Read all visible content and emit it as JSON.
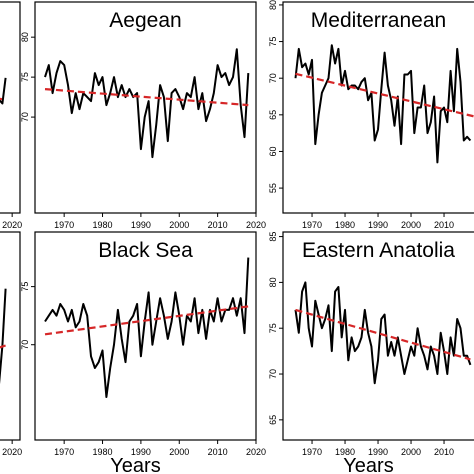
{
  "chart_data": [
    {
      "type": "line",
      "xlim": [
        1961.2,
        2022.4
      ],
      "ylim": [
        56.5,
        85.4
      ],
      "xticks": [
        2020
      ],
      "series": [
        {
          "color": "#000000",
          "x": [
            2015,
            2016,
            2017,
            2018
          ],
          "values": [
            71,
            72,
            71.5,
            75
          ]
        },
        {
          "color": "#d62728",
          "dashed": true,
          "x": [
            1965,
            2018
          ],
          "values": [
            76,
            72
          ]
        }
      ]
    },
    {
      "type": "line",
      "title": "Aegean",
      "xlim": [
        1962.4,
        2020
      ],
      "ylim": [
        58,
        84.4
      ],
      "xticks": [
        1970,
        1980,
        1990,
        2000,
        2010,
        2020
      ],
      "yticks": [
        70,
        75,
        80
      ],
      "series": [
        {
          "color": "#000000",
          "x": [
            1965,
            1966,
            1967,
            1968,
            1969,
            1970,
            1971,
            1972,
            1973,
            1974,
            1975,
            1976,
            1977,
            1978,
            1979,
            1980,
            1981,
            1982,
            1983,
            1984,
            1985,
            1986,
            1987,
            1988,
            1989,
            1990,
            1991,
            1992,
            1993,
            1994,
            1995,
            1996,
            1997,
            1998,
            1999,
            2000,
            2001,
            2002,
            2003,
            2004,
            2005,
            2006,
            2007,
            2008,
            2009,
            2010,
            2011,
            2012,
            2013,
            2014,
            2015,
            2016,
            2017,
            2018
          ],
          "values": [
            75,
            76.5,
            73,
            75.5,
            77,
            76.5,
            74,
            70.5,
            73,
            71,
            73,
            72.5,
            72,
            75.5,
            74,
            75,
            71.5,
            73,
            75,
            72.5,
            74,
            72.5,
            73.5,
            72.5,
            73,
            66,
            70,
            72,
            65,
            69,
            74,
            72.5,
            67,
            73,
            73.5,
            72.5,
            71,
            73,
            72.5,
            75,
            71,
            73,
            69.5,
            71,
            73,
            76.5,
            75,
            75.5,
            74,
            75,
            78.5,
            71.5,
            67.5,
            75.5
          ]
        },
        {
          "color": "#d62728",
          "dashed": true,
          "x": [
            1965,
            2018
          ],
          "values": [
            73.5,
            71.5
          ]
        }
      ]
    },
    {
      "type": "line",
      "title": "Mediterranean",
      "xlim": [
        1961.2,
        2020.9
      ],
      "ylim": [
        51.6,
        80.4
      ],
      "xticks": [
        1970,
        1980,
        1990,
        2000,
        2010
      ],
      "yticks": [
        55,
        60,
        65,
        70,
        75,
        80
      ],
      "series": [
        {
          "color": "#000000",
          "x": [
            1965,
            1966,
            1967,
            1968,
            1969,
            1970,
            1971,
            1972,
            1973,
            1974,
            1975,
            1976,
            1977,
            1978,
            1979,
            1980,
            1981,
            1982,
            1983,
            1984,
            1985,
            1986,
            1987,
            1988,
            1989,
            1990,
            1991,
            1992,
            1993,
            1994,
            1995,
            1996,
            1997,
            1998,
            1999,
            2000,
            2001,
            2002,
            2003,
            2004,
            2005,
            2006,
            2007,
            2008,
            2009,
            2010,
            2011,
            2012,
            2013,
            2014,
            2015,
            2016,
            2017,
            2018
          ],
          "values": [
            70,
            74,
            71.5,
            72,
            70.5,
            72.5,
            61,
            65,
            68,
            69,
            70,
            74.5,
            72,
            74,
            69,
            71,
            68.5,
            69,
            69,
            68.5,
            69.5,
            70,
            67,
            68,
            61.5,
            63,
            68.5,
            73.5,
            69,
            67,
            63.5,
            67.5,
            61,
            70.5,
            70.5,
            71,
            62.5,
            66,
            66,
            69,
            62.5,
            64,
            67.5,
            58.5,
            65.5,
            66,
            64,
            71,
            65.5,
            74,
            69.5,
            61.5,
            62,
            61.5
          ]
        },
        {
          "color": "#d62728",
          "dashed": true,
          "x": [
            1965,
            2019
          ],
          "values": [
            70.6,
            64.8
          ]
        }
      ]
    },
    {
      "type": "line",
      "xlim": [
        1961.2,
        2022.4
      ],
      "ylim": [
        60,
        82
      ],
      "xticks": [
        2020
      ],
      "series": [
        {
          "color": "#000000",
          "x": [
            2015,
            2016,
            2017,
            2018
          ],
          "values": [
            68,
            66,
            70,
            76
          ]
        },
        {
          "color": "#d62728",
          "dashed": true,
          "x": [
            1965,
            2018
          ],
          "values": [
            64,
            70
          ]
        }
      ]
    },
    {
      "type": "line",
      "title": "Black Sea",
      "xlabel": "Years",
      "xlim": [
        1962.4,
        2020
      ],
      "ylim": [
        61.8,
        79.7
      ],
      "xticks": [
        1970,
        1980,
        1990,
        2000,
        2010,
        2020
      ],
      "yticks": [
        70,
        75
      ],
      "series": [
        {
          "color": "#000000",
          "x": [
            1965,
            1966,
            1967,
            1968,
            1969,
            1970,
            1971,
            1972,
            1973,
            1974,
            1975,
            1976,
            1977,
            1978,
            1979,
            1980,
            1981,
            1982,
            1983,
            1984,
            1985,
            1986,
            1987,
            1988,
            1989,
            1990,
            1991,
            1992,
            1993,
            1994,
            1995,
            1996,
            1997,
            1998,
            1999,
            2000,
            2001,
            2002,
            2003,
            2004,
            2005,
            2006,
            2007,
            2008,
            2009,
            2010,
            2011,
            2012,
            2013,
            2014,
            2015,
            2016,
            2017,
            2018
          ],
          "values": [
            72,
            72.5,
            73,
            72.5,
            73.5,
            73,
            72,
            73,
            71.5,
            72,
            73.5,
            72.5,
            69,
            68,
            68.5,
            69.5,
            65.5,
            68,
            70,
            73,
            70.5,
            68.5,
            72,
            72.5,
            73.5,
            69,
            72,
            74.5,
            70,
            72,
            74,
            72.5,
            70.5,
            72,
            74.5,
            72.5,
            70,
            72.5,
            72,
            74,
            71,
            73,
            70.5,
            73,
            72,
            74,
            72,
            73,
            73,
            74,
            72.5,
            74,
            71,
            77.5
          ]
        },
        {
          "color": "#d62728",
          "dashed": true,
          "x": [
            1965,
            2018
          ],
          "values": [
            70.9,
            73.3
          ]
        }
      ]
    },
    {
      "type": "line",
      "title": "Eastern Anatolia",
      "xlabel": "Years",
      "xlim": [
        1961.2,
        2020.9
      ],
      "ylim": [
        62.8,
        85.5
      ],
      "xticks": [
        1970,
        1980,
        1990,
        2000,
        2010
      ],
      "yticks": [
        65,
        70,
        75,
        80,
        85
      ],
      "series": [
        {
          "color": "#000000",
          "x": [
            1965,
            1966,
            1967,
            1968,
            1969,
            1970,
            1971,
            1972,
            1973,
            1974,
            1975,
            1976,
            1977,
            1978,
            1979,
            1980,
            1981,
            1982,
            1983,
            1984,
            1985,
            1986,
            1987,
            1988,
            1989,
            1990,
            1991,
            1992,
            1993,
            1994,
            1995,
            1996,
            1997,
            1998,
            1999,
            2000,
            2001,
            2002,
            2003,
            2004,
            2005,
            2006,
            2007,
            2008,
            2009,
            2010,
            2011,
            2012,
            2013,
            2014,
            2015,
            2016,
            2017,
            2018
          ],
          "values": [
            77,
            74.5,
            79,
            80,
            75,
            73,
            78,
            76.5,
            75,
            76,
            77.5,
            72.5,
            79,
            79.5,
            74,
            77,
            71.5,
            74,
            72.5,
            73,
            74,
            77,
            74.5,
            73,
            69,
            71.5,
            76,
            76.5,
            72,
            73.5,
            72,
            74,
            72,
            70,
            71.5,
            73,
            72,
            75,
            73,
            72,
            70.5,
            73,
            72,
            70,
            74.5,
            72.5,
            70,
            74,
            72,
            76,
            75,
            72,
            72,
            71
          ]
        },
        {
          "color": "#d62728",
          "dashed": true,
          "x": [
            1965,
            2018
          ],
          "values": [
            77,
            71.6
          ]
        }
      ]
    }
  ]
}
